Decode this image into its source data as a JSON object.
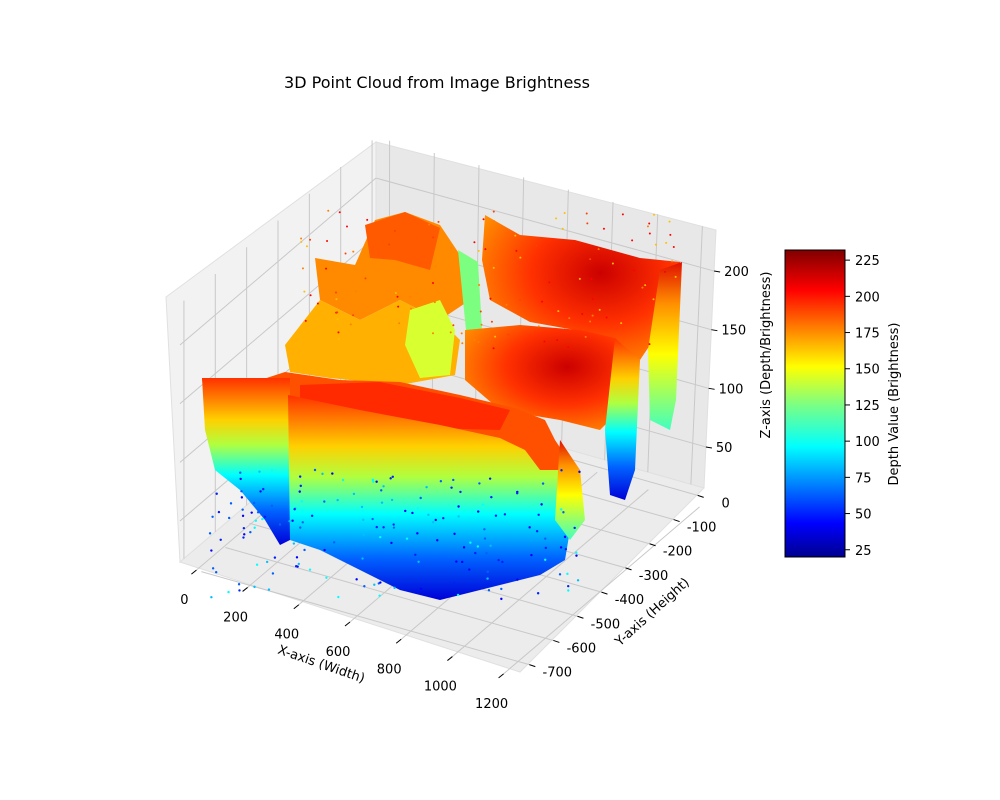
{
  "chart_data": {
    "type": "scatter",
    "projection": "3d",
    "title": "3D Point Cloud from Image Brightness",
    "xlabel": "X-axis (Width)",
    "ylabel": "Y-axis (Height)",
    "zlabel": "Z-axis (Depth/Brightness)",
    "xlim": [
      0,
      1200
    ],
    "ylim": [
      -700,
      0
    ],
    "zlim": [
      15,
      235
    ],
    "x_ticks": [
      0,
      200,
      400,
      600,
      800,
      1000,
      1200
    ],
    "y_ticks": [
      0,
      -100,
      -200,
      -300,
      -400,
      -500,
      -600,
      -700
    ],
    "z_ticks": [
      50,
      100,
      150,
      200
    ],
    "grid": true,
    "colormap": "jet",
    "colorbar": {
      "label": "Depth Value (Brightness)",
      "range": [
        20,
        232
      ],
      "ticks": [
        25,
        50,
        75,
        100,
        125,
        150,
        175,
        200,
        225
      ]
    },
    "surface_regions": [
      {
        "x": [
          0,
          1200
        ],
        "y": [
          -700,
          -420
        ],
        "z_top": 205,
        "z_bottom": 30
      },
      {
        "x": [
          300,
          650
        ],
        "y": [
          -420,
          -100
        ],
        "z_top": 195,
        "z_bottom": 60
      },
      {
        "x": [
          600,
          1200
        ],
        "y": [
          -420,
          -150
        ],
        "z_top": 205,
        "z_bottom": 40
      },
      {
        "x": [
          800,
          1200
        ],
        "y": [
          -150,
          0
        ],
        "z_top": 230,
        "z_bottom": 60
      }
    ]
  }
}
